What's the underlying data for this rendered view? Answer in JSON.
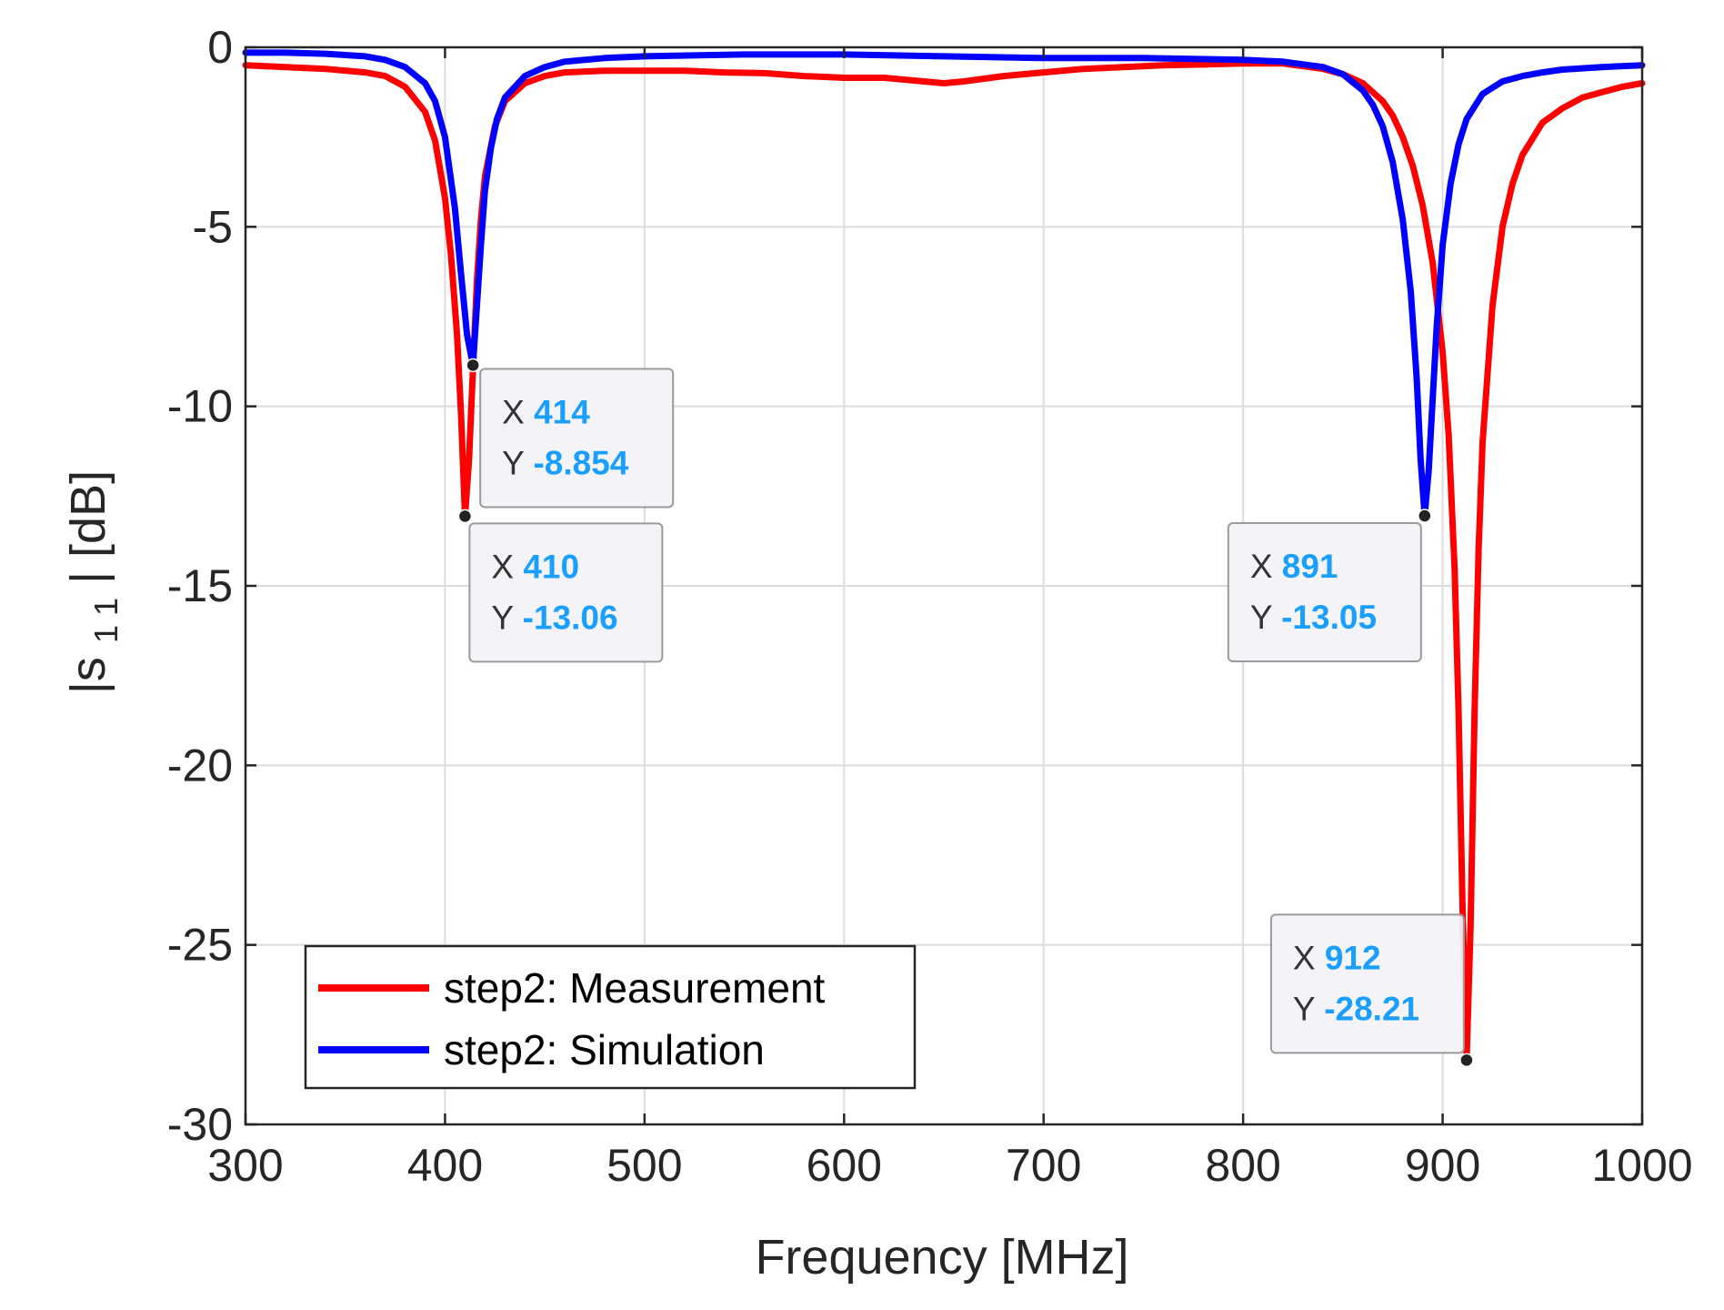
{
  "chart_data": {
    "type": "line",
    "title": "",
    "xlabel": "Frequency [MHz]",
    "ylabel": "|s11| [dB]",
    "ylabel_parts": {
      "pre": "|s",
      "sub": "1 1",
      "post": "| [dB]"
    },
    "xlim": [
      300,
      1000
    ],
    "ylim": [
      -30,
      0
    ],
    "xticks": [
      300,
      400,
      500,
      600,
      700,
      800,
      900,
      1000
    ],
    "yticks": [
      0,
      -5,
      -10,
      -15,
      -20,
      -25,
      -30
    ],
    "grid": true,
    "legend_position": "bottom-left",
    "series": [
      {
        "name": "step2: Measurement",
        "color": "#ff0000",
        "x": [
          300,
          320,
          340,
          360,
          370,
          380,
          390,
          395,
          400,
          403,
          406,
          408,
          410,
          412,
          414,
          416,
          418,
          420,
          425,
          430,
          440,
          450,
          460,
          480,
          500,
          520,
          540,
          560,
          580,
          600,
          620,
          640,
          650,
          660,
          680,
          700,
          720,
          740,
          760,
          780,
          800,
          820,
          840,
          850,
          860,
          870,
          875,
          880,
          885,
          890,
          895,
          900,
          903,
          906,
          908,
          910,
          912,
          914,
          916,
          918,
          920,
          925,
          930,
          935,
          940,
          950,
          960,
          970,
          980,
          990,
          1000
        ],
        "y": [
          -0.5,
          -0.55,
          -0.6,
          -0.7,
          -0.8,
          -1.1,
          -1.8,
          -2.6,
          -4.2,
          -5.8,
          -8.0,
          -10.2,
          -13.06,
          -11.5,
          -9.0,
          -6.5,
          -4.8,
          -3.6,
          -2.2,
          -1.5,
          -1.0,
          -0.8,
          -0.7,
          -0.65,
          -0.65,
          -0.65,
          -0.7,
          -0.72,
          -0.8,
          -0.85,
          -0.85,
          -0.95,
          -1.0,
          -0.95,
          -0.8,
          -0.7,
          -0.6,
          -0.55,
          -0.5,
          -0.48,
          -0.45,
          -0.45,
          -0.6,
          -0.75,
          -1.0,
          -1.5,
          -1.9,
          -2.5,
          -3.3,
          -4.4,
          -6.0,
          -8.5,
          -10.8,
          -14.5,
          -18.5,
          -24.0,
          -28.21,
          -24.5,
          -18.5,
          -14.0,
          -11.0,
          -7.2,
          -5.0,
          -3.8,
          -3.0,
          -2.1,
          -1.7,
          -1.4,
          -1.25,
          -1.1,
          -1.0
        ]
      },
      {
        "name": "step2: Simulation",
        "color": "#0000ff",
        "x": [
          300,
          320,
          340,
          360,
          370,
          380,
          390,
          395,
          400,
          405,
          408,
          411,
          414,
          416,
          418,
          420,
          423,
          426,
          430,
          440,
          450,
          460,
          480,
          500,
          550,
          600,
          650,
          700,
          750,
          800,
          820,
          840,
          850,
          860,
          865,
          870,
          875,
          880,
          884,
          887,
          889,
          891,
          893,
          895,
          897,
          900,
          904,
          908,
          912,
          920,
          930,
          940,
          950,
          960,
          980,
          1000
        ],
        "y": [
          -0.15,
          -0.15,
          -0.18,
          -0.25,
          -0.35,
          -0.55,
          -1.0,
          -1.5,
          -2.5,
          -4.5,
          -6.3,
          -8.0,
          -8.854,
          -7.2,
          -5.5,
          -4.0,
          -2.8,
          -2.0,
          -1.4,
          -0.8,
          -0.55,
          -0.4,
          -0.3,
          -0.25,
          -0.2,
          -0.2,
          -0.25,
          -0.3,
          -0.3,
          -0.35,
          -0.4,
          -0.55,
          -0.75,
          -1.2,
          -1.6,
          -2.2,
          -3.2,
          -4.8,
          -6.8,
          -9.2,
          -11.5,
          -13.05,
          -11.8,
          -9.8,
          -7.8,
          -5.5,
          -3.8,
          -2.7,
          -2.0,
          -1.3,
          -0.95,
          -0.8,
          -0.7,
          -0.62,
          -0.55,
          -0.5
        ]
      }
    ],
    "datatips": [
      {
        "x_label": "X",
        "y_label": "Y",
        "x": 414,
        "y": -8.854,
        "x_text": "414",
        "y_text": "-8.854",
        "series": "step2: Simulation"
      },
      {
        "x_label": "X",
        "y_label": "Y",
        "x": 410,
        "y": -13.06,
        "x_text": "410",
        "y_text": "-13.06",
        "series": "step2: Measurement"
      },
      {
        "x_label": "X",
        "y_label": "Y",
        "x": 891,
        "y": -13.05,
        "x_text": "891",
        "y_text": "-13.05",
        "series": "step2: Simulation"
      },
      {
        "x_label": "X",
        "y_label": "Y",
        "x": 912,
        "y": -28.21,
        "x_text": "912",
        "y_text": "-28.21",
        "series": "step2: Measurement"
      }
    ]
  }
}
